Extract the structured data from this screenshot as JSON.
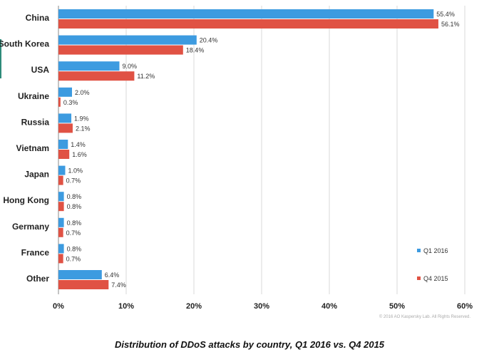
{
  "chart_data": {
    "type": "bar",
    "orientation": "horizontal",
    "categories": [
      "China",
      "South Korea",
      "USA",
      "Ukraine",
      "Russia",
      "Vietnam",
      "Japan",
      "Hong Kong",
      "Germany",
      "France",
      "Other"
    ],
    "series": [
      {
        "name": "Q1 2016",
        "color": "#3d9be0",
        "values": [
          55.4,
          20.4,
          9.0,
          2.0,
          1.9,
          1.4,
          1.0,
          0.8,
          0.8,
          0.8,
          6.4
        ],
        "labels": [
          "55.4%",
          "20.4%",
          "9.0%",
          "2.0%",
          "1.9%",
          "1.4%",
          "1.0%",
          "0.8%",
          "0.8%",
          "0.8%",
          "6.4%"
        ]
      },
      {
        "name": "Q4 2015",
        "color": "#e05244",
        "values": [
          56.1,
          18.4,
          11.2,
          0.3,
          2.1,
          1.6,
          0.7,
          0.8,
          0.7,
          0.7,
          7.4
        ],
        "labels": [
          "56.1%",
          "18.4%",
          "11.2%",
          "0.3%",
          "2.1%",
          "1.6%",
          "0.7%",
          "0.8%",
          "0.7%",
          "0.7%",
          "7.4%"
        ]
      }
    ],
    "xlim": [
      0,
      60
    ],
    "xticks": [
      "0%",
      "10%",
      "20%",
      "30%",
      "40%",
      "50%",
      "60%"
    ],
    "grid": "vertical",
    "legend_position": "bottom-right"
  },
  "caption": "Distribution of DDoS attacks by country, Q1 2016 vs. Q4 2015",
  "copyright": "© 2016 AO Kaspersky Lab. All Rights Reserved."
}
